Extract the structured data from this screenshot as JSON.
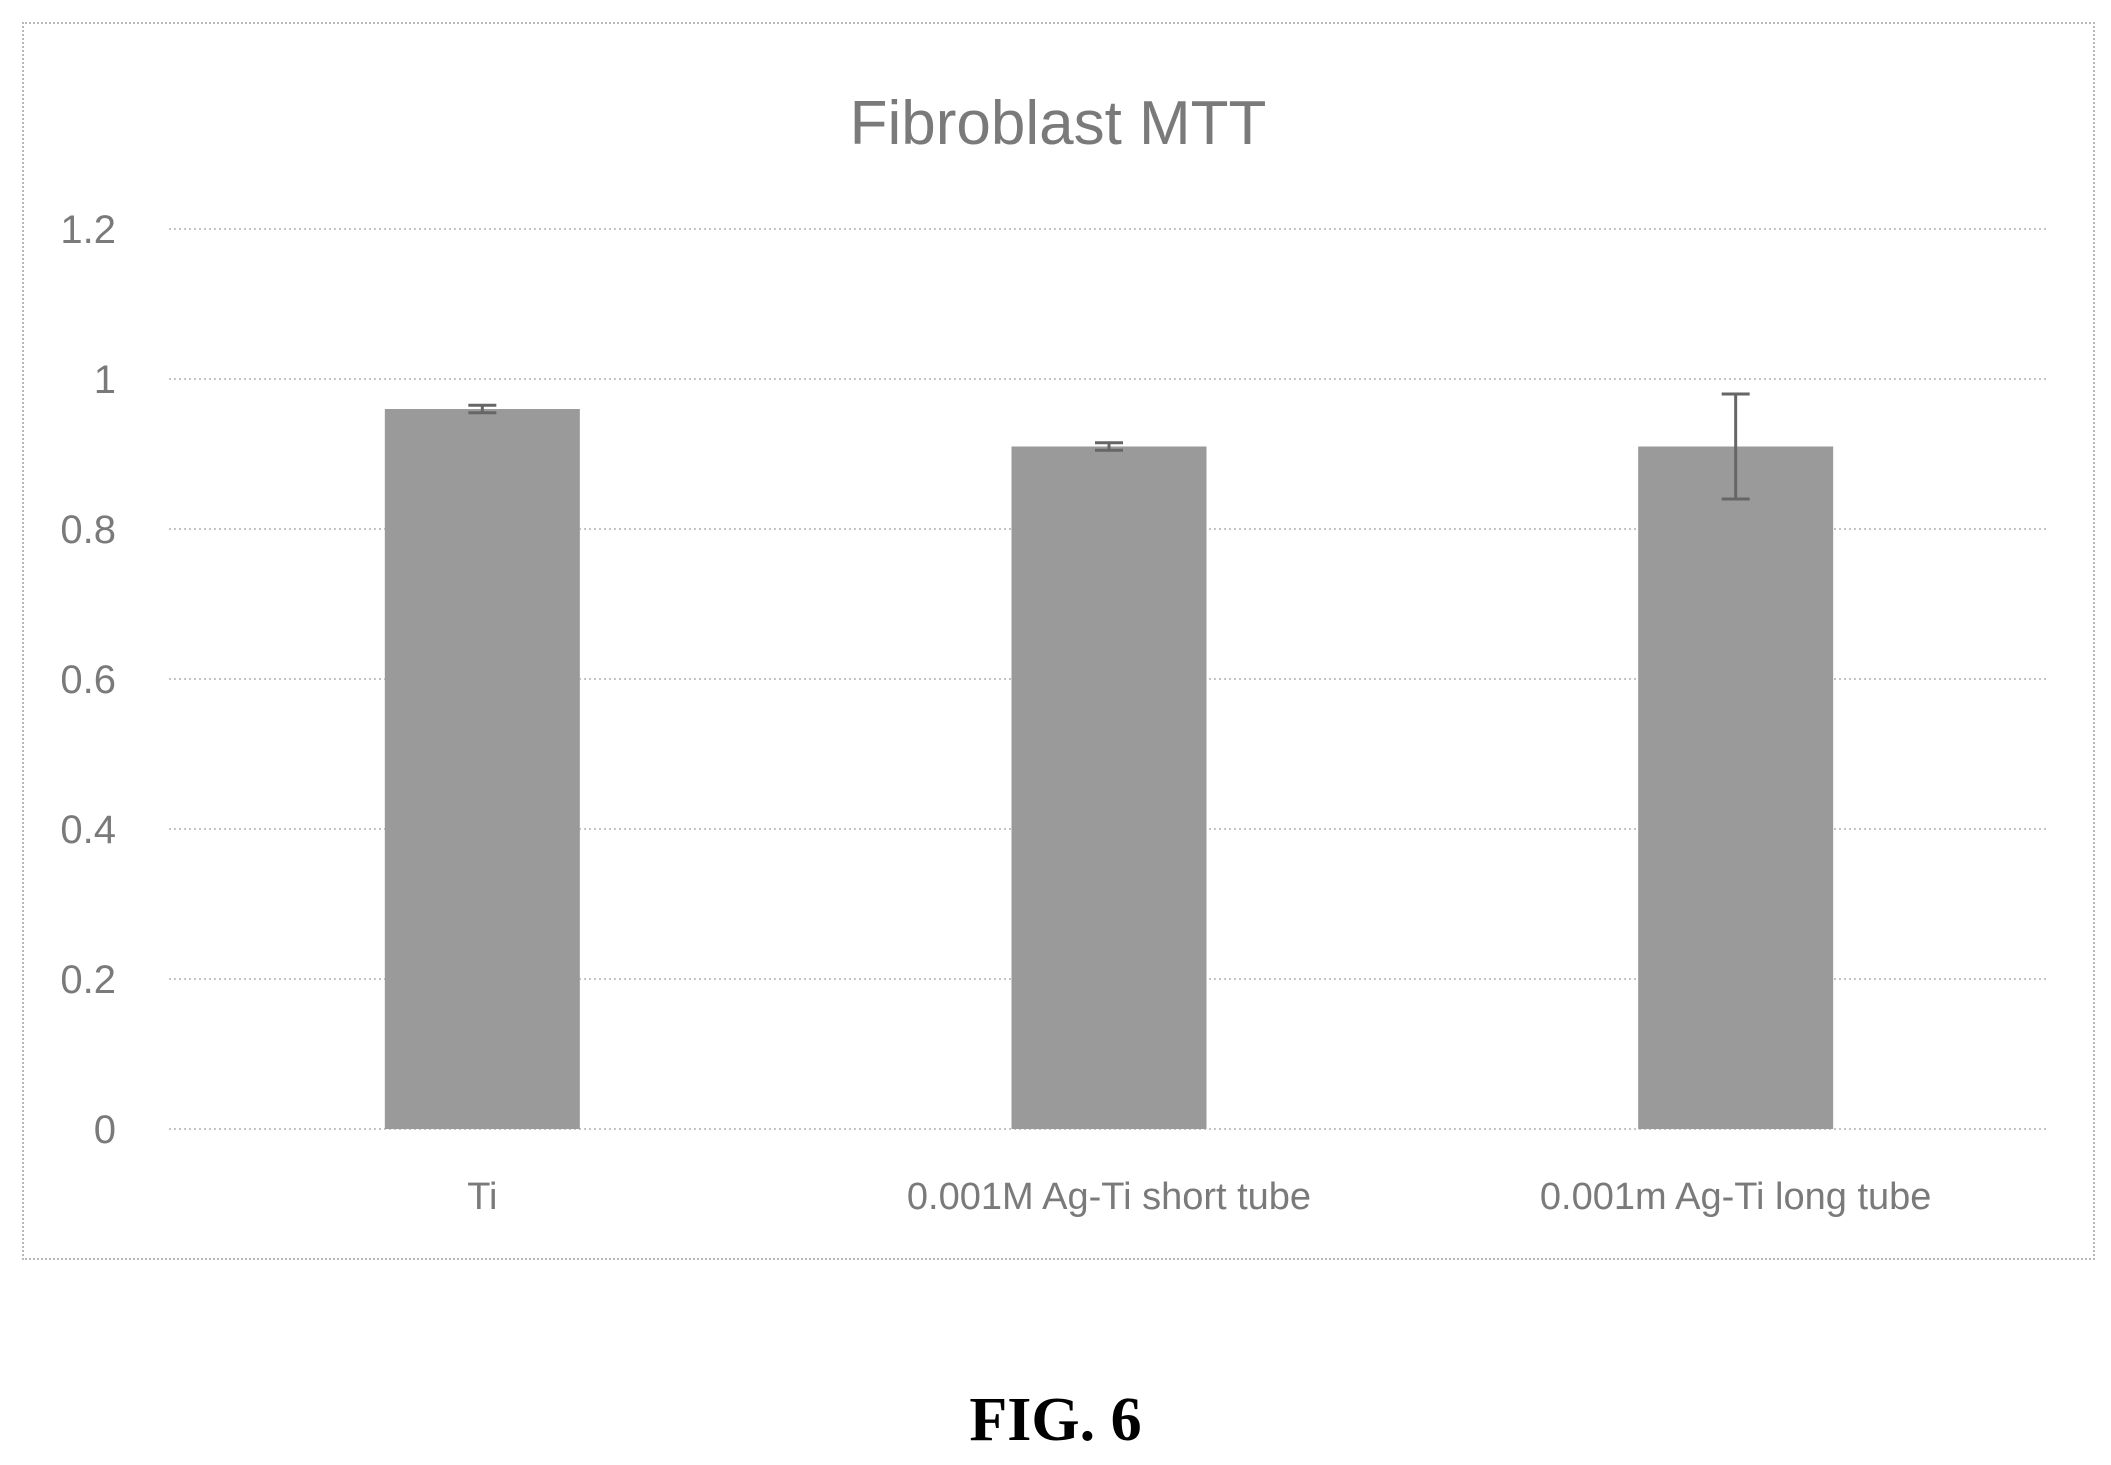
{
  "figure_caption": "FIG. 6",
  "chart_data": {
    "type": "bar",
    "title": "Fibroblast MTT",
    "xlabel": "",
    "ylabel": "",
    "ylim": [
      0,
      1.2
    ],
    "yticks": [
      "0",
      "0.2",
      "0.4",
      "0.6",
      "0.8",
      "1",
      "1.2"
    ],
    "categories": [
      "Ti",
      "0.001M Ag-Ti short tube",
      "0.001m  Ag-Ti long tube"
    ],
    "values": [
      0.96,
      0.91,
      0.91
    ],
    "error": [
      0.005,
      0.005,
      0.07
    ],
    "grid": true,
    "legend": "none",
    "colors": {
      "bar": "#9a9a9a",
      "grid": "#c4c4c4",
      "text": "#7a7a7a",
      "error_bar": "#666666"
    }
  }
}
